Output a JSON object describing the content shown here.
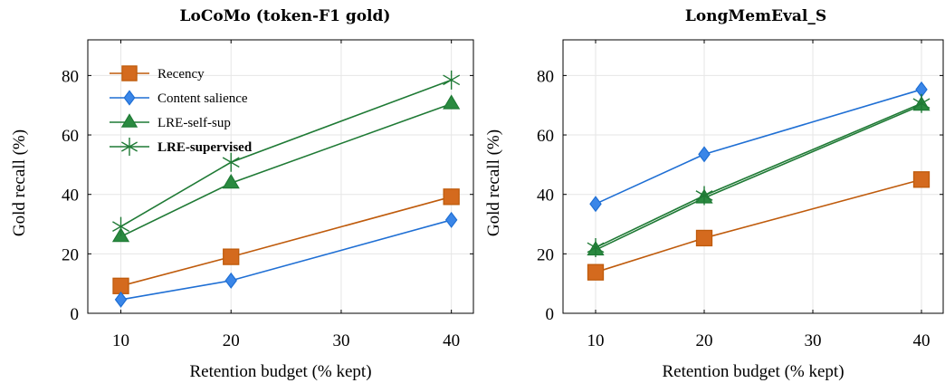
{
  "colors": {
    "recency": "#bf5b0c",
    "recency_fill": "#d46a1e",
    "content": "#1f6fd4",
    "content_fill": "#3a86e8",
    "lre": "#1f7a35",
    "lre_fill": "#2a8a40"
  },
  "chart_data": [
    {
      "type": "line",
      "title": "LoCoMo (token-F1 gold)",
      "xlabel": "Retention budget (% kept)",
      "ylabel": "Gold recall (%)",
      "xlim": [
        7,
        42
      ],
      "ylim": [
        0,
        92
      ],
      "xticks": [
        10,
        20,
        30,
        40
      ],
      "yticks": [
        0,
        20,
        40,
        60,
        80
      ],
      "grid": true,
      "legend": "top-left",
      "x": [
        10,
        20,
        40
      ],
      "series": [
        {
          "name": "Recency",
          "marker": "square",
          "values": [
            9.2,
            19.0,
            39.2
          ]
        },
        {
          "name": "Content salience",
          "marker": "diamond",
          "values": [
            4.6,
            11.0,
            31.4
          ]
        },
        {
          "name": "LRE-self-sup",
          "marker": "triangle",
          "values": [
            25.8,
            43.8,
            70.5
          ]
        },
        {
          "name": "LRE-supervised",
          "marker": "star",
          "values": [
            29.2,
            50.8,
            78.5
          ]
        }
      ]
    },
    {
      "type": "line",
      "title": "LongMemEval_S",
      "xlabel": "Retention budget (% kept)",
      "ylabel": "Gold recall (%)",
      "xlim": [
        7,
        42
      ],
      "ylim": [
        0,
        92
      ],
      "xticks": [
        10,
        20,
        30,
        40
      ],
      "yticks": [
        0,
        20,
        40,
        60,
        80
      ],
      "grid": true,
      "legend": "none",
      "x": [
        10,
        20,
        40
      ],
      "series": [
        {
          "name": "Recency",
          "marker": "square",
          "values": [
            13.8,
            25.3,
            45.0
          ]
        },
        {
          "name": "Content salience",
          "marker": "diamond",
          "values": [
            36.8,
            53.5,
            75.3
          ]
        },
        {
          "name": "LRE-self-sup",
          "marker": "triangle",
          "values": [
            21.3,
            38.8,
            70.0
          ]
        },
        {
          "name": "LRE-supervised",
          "marker": "star",
          "values": [
            22.1,
            39.6,
            70.6
          ]
        }
      ]
    }
  ]
}
